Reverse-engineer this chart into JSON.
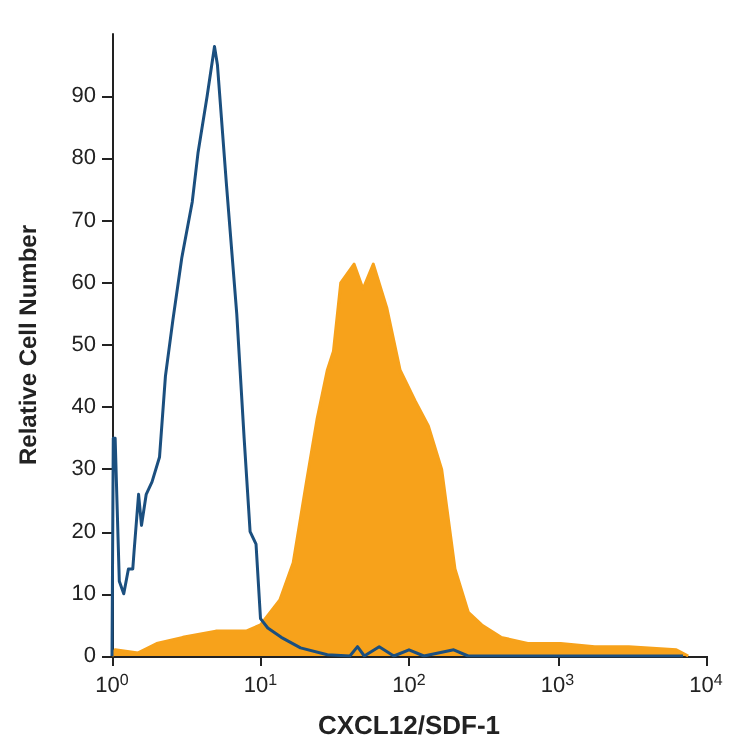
{
  "chart_data": {
    "type": "area",
    "xlabel": "CXCL12/SDF-1",
    "ylabel": "Relative Cell Number",
    "log": "x",
    "grid": false,
    "xlim": [
      1,
      10000
    ],
    "ylim": [
      0,
      100
    ],
    "xticks": [
      {
        "value": 1,
        "label": "10$^{0}$"
      },
      {
        "value": 10,
        "label": "10$^{1}$"
      },
      {
        "value": 100,
        "label": "10$^{2}$"
      },
      {
        "value": 1000,
        "label": "10$^{3}$"
      },
      {
        "value": 10000,
        "label": "10$^{4}$"
      }
    ],
    "yticks": [
      0,
      10,
      20,
      30,
      40,
      50,
      60,
      70,
      80,
      90
    ],
    "series": [
      {
        "color": "#f7a21b",
        "x": [
          1,
          1.05,
          1.5,
          2,
          3,
          5,
          8,
          10,
          13.5,
          16.6,
          20.4,
          24,
          28.2,
          31,
          34.7,
          42.7,
          49,
          57.5,
          70.8,
          87,
          110,
          135,
          166,
          204,
          251,
          309,
          417,
          631,
          1050,
          1780,
          3020,
          6310,
          7590
        ],
        "values": [
          0,
          1,
          0.5,
          2,
          3,
          4,
          4,
          5,
          9,
          15,
          28,
          38,
          46,
          49,
          60,
          63,
          59,
          63,
          56,
          46,
          41,
          37,
          30,
          14,
          7,
          5,
          3,
          2,
          2,
          1.5,
          1.5,
          1,
          0
        ]
      },
      {
        "type": "line",
        "color": "#1b4f7f",
        "x": [
          1,
          1.02,
          1.05,
          1.12,
          1.2,
          1.29,
          1.38,
          1.41,
          1.51,
          1.58,
          1.7,
          1.86,
          2.09,
          2.29,
          2.57,
          2.95,
          3.47,
          3.8,
          4.37,
          4.9,
          5.13,
          5.89,
          6.92,
          7.76,
          8.51,
          9.33,
          10,
          11.2,
          13.8,
          18.6,
          28.2,
          40,
          45,
          50,
          63,
          79,
          100,
          126,
          200,
          250,
          1000,
          7000
        ],
        "values": [
          0,
          35,
          35,
          12,
          10,
          14,
          14,
          17,
          26,
          21,
          26,
          28,
          32,
          45,
          54,
          64,
          73,
          81,
          90,
          98,
          95,
          76,
          55,
          35,
          20,
          18,
          6,
          4.5,
          3,
          1.3,
          0.2,
          0,
          1.5,
          0,
          1.5,
          0,
          1,
          0,
          1,
          0,
          0,
          0
        ]
      }
    ]
  }
}
